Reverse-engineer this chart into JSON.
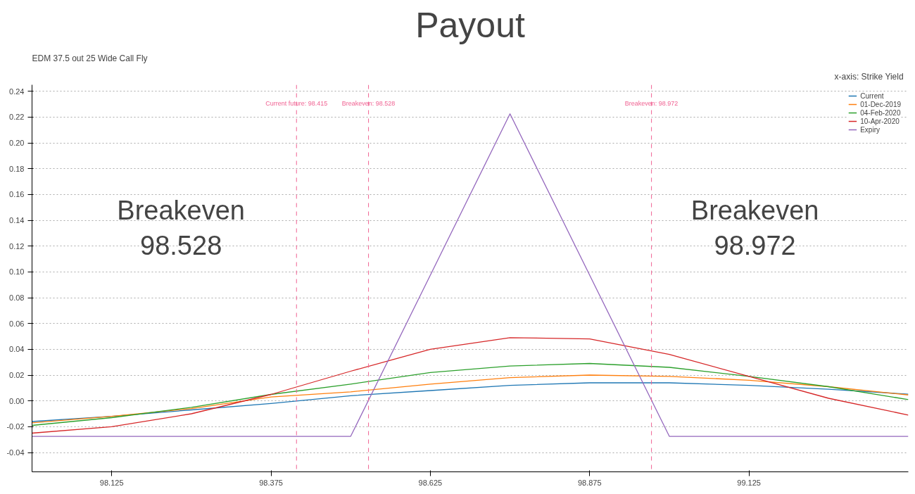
{
  "chart_data": {
    "type": "line",
    "title": "Payout",
    "subtitle": "EDM 37.5 out 25 Wide Call Fly",
    "x": [
      98.0,
      98.125,
      98.25,
      98.375,
      98.5,
      98.625,
      98.75,
      98.875,
      99.0,
      99.125,
      99.25,
      99.375
    ],
    "series": [
      {
        "name": "Current",
        "color": "#1f77b4",
        "values": [
          -0.016,
          -0.012,
          -0.007,
          -0.002,
          0.004,
          0.008,
          0.012,
          0.014,
          0.014,
          0.012,
          0.009,
          0.0052
        ]
      },
      {
        "name": "01-Dec-2019",
        "color": "#ff7f0e",
        "values": [
          -0.017,
          -0.012,
          -0.006,
          0.003,
          0.007,
          0.013,
          0.018,
          0.02,
          0.019,
          0.016,
          0.011,
          0.0046
        ]
      },
      {
        "name": "04-Feb-2020",
        "color": "#2ca02c",
        "values": [
          -0.019,
          -0.013,
          -0.005,
          0.005,
          0.013,
          0.022,
          0.027,
          0.029,
          0.026,
          0.019,
          0.011,
          0.001
        ]
      },
      {
        "name": "10-Apr-2020",
        "color": "#d62728",
        "values": [
          -0.025,
          -0.02,
          -0.01,
          0.005,
          0.023,
          0.04,
          0.049,
          0.048,
          0.036,
          0.019,
          0.002,
          -0.011
        ]
      },
      {
        "name": "Expiry",
        "color": "#9467bd",
        "values": [
          -0.0275,
          -0.0275,
          -0.0275,
          -0.0275,
          -0.0275,
          0.0975,
          0.2225,
          0.0975,
          -0.0275,
          -0.0275,
          -0.0275,
          -0.0275
        ]
      }
    ],
    "xlim": [
      98.0,
      99.375
    ],
    "xticks": [
      98.125,
      98.375,
      98.625,
      98.875,
      99.125
    ],
    "ylim": [
      -0.055,
      0.245
    ],
    "yticks": [
      {
        "value": -0.04,
        "label": "-0.04"
      },
      {
        "value": -0.02,
        "label": "-0.02"
      },
      {
        "value": 0,
        "label": "0.00"
      },
      {
        "value": 0.02,
        "label": "0.02"
      },
      {
        "value": 0.04,
        "label": "0.04"
      },
      {
        "value": 0.06,
        "label": "0.06"
      },
      {
        "value": 0.08,
        "label": "0.08"
      },
      {
        "value": 0.1,
        "label": "0.10"
      },
      {
        "value": 0.12,
        "label": "0.12"
      },
      {
        "value": 0.14,
        "label": "0.14"
      },
      {
        "value": 0.16,
        "label": "0.16"
      },
      {
        "value": 0.18,
        "label": "0.18"
      },
      {
        "value": 0.2,
        "label": "0.20"
      },
      {
        "value": 0.22,
        "label": "0.22"
      },
      {
        "value": 0.24,
        "label": "0.24"
      }
    ],
    "ref_lines": [
      {
        "axis": "x",
        "value": 98.415,
        "label": "Current future: 98.415",
        "color": "#f06292",
        "line_style": "dashed"
      },
      {
        "axis": "x",
        "value": 98.528,
        "label": "Breakeven: 98.528",
        "color": "#f06292",
        "line_style": "dashed"
      },
      {
        "axis": "x",
        "value": 98.972,
        "label": "Breakeven: 98.972",
        "color": "#f06292",
        "line_style": "dashed"
      }
    ],
    "annotations": [
      "Breakeven\n98.528",
      "Breakeven\n98.972",
      "x-axis:  Strike  Yield"
    ],
    "grid": "y",
    "legend": "top right",
    "marker": "none",
    "line_style": "solid"
  }
}
